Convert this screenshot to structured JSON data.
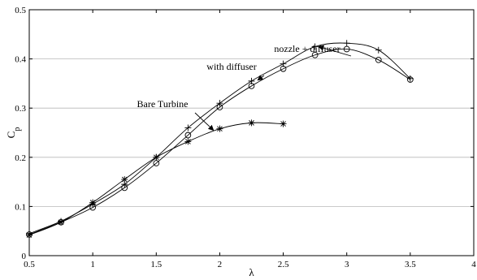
{
  "chart_data": {
    "type": "line",
    "xlabel": "λ",
    "ylabel": "C",
    "ylabel_sub": "p",
    "xlim": [
      0.5,
      4
    ],
    "ylim": [
      0,
      0.5
    ],
    "xticks": [
      "0.5",
      "1",
      "1.5",
      "2",
      "2.5",
      "3",
      "3.5",
      "4"
    ],
    "yticks": [
      "0",
      "0.1",
      "0.2",
      "0.3",
      "0.4",
      "0.5"
    ],
    "grid": "horizontal",
    "series": [
      {
        "name": "nozzle + diffuser",
        "marker": "plus",
        "x": [
          0.5,
          0.75,
          1.0,
          1.25,
          1.5,
          1.75,
          2.0,
          2.25,
          2.5,
          2.75,
          3.0,
          3.25,
          3.5
        ],
        "y": [
          0.045,
          0.07,
          0.105,
          0.145,
          0.2,
          0.26,
          0.31,
          0.355,
          0.39,
          0.425,
          0.432,
          0.418,
          0.36
        ]
      },
      {
        "name": "with diffuser",
        "marker": "circle",
        "x": [
          0.5,
          0.75,
          1.0,
          1.25,
          1.5,
          1.75,
          2.0,
          2.25,
          2.5,
          2.75,
          3.0,
          3.25,
          3.5
        ],
        "y": [
          0.043,
          0.068,
          0.098,
          0.138,
          0.188,
          0.245,
          0.302,
          0.345,
          0.38,
          0.408,
          0.42,
          0.398,
          0.358
        ]
      },
      {
        "name": "Bare Turbine",
        "marker": "star",
        "x": [
          0.5,
          0.75,
          1.0,
          1.25,
          1.5,
          1.75,
          2.0,
          2.25,
          2.5
        ],
        "y": [
          0.042,
          0.068,
          0.108,
          0.155,
          0.2,
          0.232,
          0.258,
          0.27,
          0.268
        ]
      }
    ],
    "annotations": [
      {
        "text": "nozzle + diffuser",
        "series": "nozzle + diffuser",
        "arrow_to_x": 2.78,
        "arrow_to_y": 0.425
      },
      {
        "text": "with diffuser",
        "series": "with diffuser",
        "arrow_to_x": 2.3,
        "arrow_to_y": 0.357
      },
      {
        "text": "Bare Turbine",
        "series": "Bare Turbine",
        "arrow_to_x": 1.95,
        "arrow_to_y": 0.255
      }
    ]
  }
}
